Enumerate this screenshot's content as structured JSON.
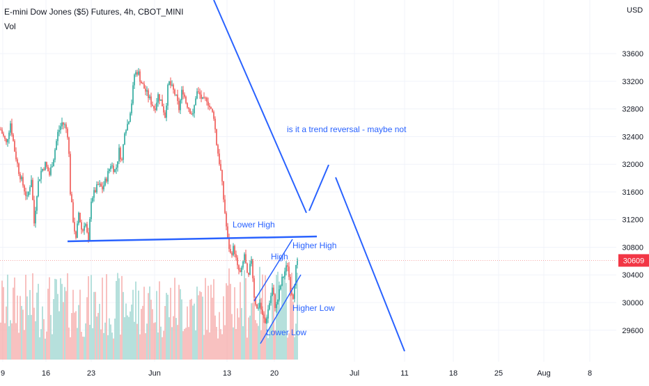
{
  "header": {
    "title": "E-mini Dow Jones ($5) Futures, 4h, CBOT_MINI",
    "volume_label": "Vol",
    "currency": "USD"
  },
  "price_marker": {
    "value": "30609",
    "color": "#f23645"
  },
  "annotations": {
    "trend_question": "is it a trend reversal - maybe not",
    "lower_high": "Lower High",
    "high": "High",
    "higher_high": "Higher High",
    "higher_low": "Higher Low",
    "lower_low": "Lower Low"
  },
  "colors": {
    "up": "#26a69a",
    "down": "#ef5350",
    "annotation": "#2962ff",
    "grid": "#f0f3fa",
    "axis_text": "#131722"
  },
  "chart_data": {
    "type": "candlestick",
    "title": "E-mini Dow Jones ($5) Futures, 4h, CBOT_MINI",
    "y_unit": "USD",
    "y_ticks": [
      33600,
      33200,
      32800,
      32400,
      32000,
      31600,
      31200,
      30800,
      30400,
      30000,
      29600
    ],
    "x_ticks": [
      "9",
      "16",
      "23",
      "Jun",
      "13",
      "20",
      "Jul",
      "11",
      "18",
      "25",
      "Aug",
      "8"
    ],
    "ylim": [
      29200,
      33800
    ],
    "last_price": 30609,
    "grid": true,
    "close_path": [
      [
        0,
        32500
      ],
      [
        8,
        32300
      ],
      [
        14,
        32600
      ],
      [
        20,
        32200
      ],
      [
        26,
        31900
      ],
      [
        32,
        31700
      ],
      [
        38,
        31500
      ],
      [
        44,
        31800
      ],
      [
        48,
        31150
      ],
      [
        53,
        31700
      ],
      [
        58,
        31900
      ],
      [
        64,
        32000
      ],
      [
        70,
        31850
      ],
      [
        76,
        32100
      ],
      [
        82,
        32450
      ],
      [
        88,
        32600
      ],
      [
        93,
        32550
      ],
      [
        97,
        32400
      ],
      [
        100,
        31600
      ],
      [
        104,
        31200
      ],
      [
        108,
        30900
      ],
      [
        112,
        31300
      ],
      [
        117,
        31000
      ],
      [
        121,
        31200
      ],
      [
        126,
        30850
      ],
      [
        130,
        31500
      ],
      [
        135,
        31600
      ],
      [
        140,
        31700
      ],
      [
        146,
        31650
      ],
      [
        152,
        31800
      ],
      [
        158,
        32000
      ],
      [
        165,
        31900
      ],
      [
        170,
        32200
      ],
      [
        174,
        32050
      ],
      [
        178,
        32500
      ],
      [
        183,
        32600
      ],
      [
        188,
        32900
      ],
      [
        192,
        33300
      ],
      [
        197,
        33350
      ],
      [
        201,
        33200
      ],
      [
        206,
        33100
      ],
      [
        211,
        33000
      ],
      [
        216,
        32900
      ],
      [
        221,
        32800
      ],
      [
        226,
        33000
      ],
      [
        231,
        32900
      ],
      [
        236,
        32700
      ],
      [
        241,
        33200
      ],
      [
        246,
        33100
      ],
      [
        251,
        33000
      ],
      [
        256,
        32800
      ],
      [
        261,
        33100
      ],
      [
        266,
        32900
      ],
      [
        271,
        32800
      ],
      [
        276,
        32700
      ],
      [
        281,
        33050
      ],
      [
        286,
        33000
      ],
      [
        291,
        32900
      ],
      [
        296,
        32950
      ],
      [
        301,
        32800
      ],
      [
        306,
        32700
      ],
      [
        310,
        32300
      ],
      [
        313,
        32100
      ],
      [
        316,
        31900
      ],
      [
        320,
        31500
      ],
      [
        323,
        31200
      ],
      [
        326,
        30900
      ],
      [
        330,
        30700
      ],
      [
        335,
        30800
      ],
      [
        340,
        30500
      ],
      [
        345,
        30400
      ],
      [
        350,
        30700
      ],
      [
        355,
        30300
      ],
      [
        360,
        30650
      ],
      [
        364,
        30100
      ],
      [
        368,
        29900
      ],
      [
        372,
        30000
      ],
      [
        376,
        29800
      ],
      [
        380,
        29700
      ],
      [
        385,
        29950
      ],
      [
        390,
        30200
      ],
      [
        395,
        29900
      ],
      [
        399,
        30100
      ],
      [
        403,
        30300
      ],
      [
        408,
        30450
      ],
      [
        412,
        30550
      ],
      [
        416,
        30200
      ],
      [
        420,
        30100
      ],
      [
        424,
        30500
      ],
      [
        427,
        30610
      ]
    ]
  }
}
